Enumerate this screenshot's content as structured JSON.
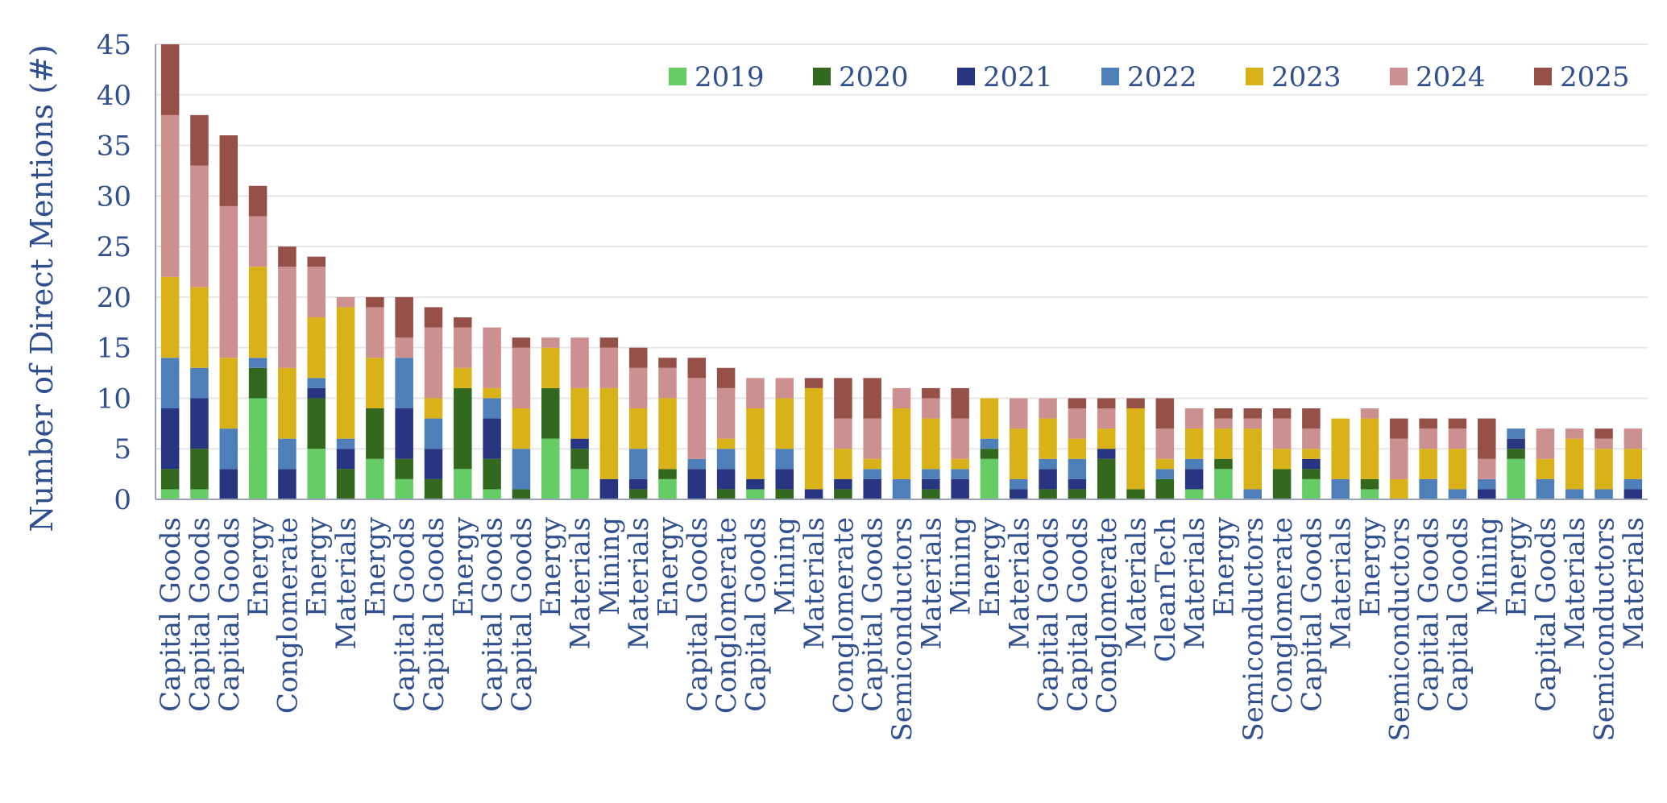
{
  "chart_data": {
    "type": "bar",
    "stacked": true,
    "title": "",
    "xlabel": "",
    "ylabel": "Number of Direct Mentions (#)",
    "ylim": [
      0,
      45
    ],
    "yticks": [
      0,
      5,
      10,
      15,
      20,
      25,
      30,
      35,
      40,
      45
    ],
    "grid": true,
    "legend_position": "top-right",
    "categories": [
      "Capital Goods",
      "Capital Goods",
      "Capital Goods",
      "Energy",
      "Conglomerate",
      "Energy",
      "Materials",
      "Energy",
      "Capital Goods",
      "Capital Goods",
      "Energy",
      "Capital Goods",
      "Capital Goods",
      "Energy",
      "Materials",
      "Mining",
      "Materials",
      "Energy",
      "Capital Goods",
      "Conglomerate",
      "Capital Goods",
      "Mining",
      "Materials",
      "Conglomerate",
      "Capital Goods",
      "Semiconductors",
      "Materials",
      "Mining",
      "Energy",
      "Materials",
      "Capital Goods",
      "Capital Goods",
      "Conglomerate",
      "Materials",
      "CleanTech",
      "Materials",
      "Energy",
      "Semiconductors",
      "Conglomerate",
      "Capital Goods",
      "Materials",
      "Energy",
      "Semiconductors",
      "Capital Goods",
      "Capital Goods",
      "Mining",
      "Energy",
      "Capital Goods",
      "Materials",
      "Semiconductors",
      "Materials"
    ],
    "series": [
      {
        "name": "2019",
        "color": "#66CC66",
        "values": [
          1,
          1,
          0,
          10,
          0,
          5,
          0,
          4,
          2,
          0,
          3,
          1,
          0,
          6,
          3,
          0,
          0,
          2,
          0,
          0,
          1,
          0,
          0,
          0,
          0,
          0,
          0,
          0,
          4,
          0,
          0,
          0,
          0,
          0,
          0,
          1,
          3,
          0,
          0,
          2,
          0,
          1,
          0,
          0,
          0,
          0,
          4,
          0,
          0,
          0,
          0
        ]
      },
      {
        "name": "2020",
        "color": "#33691E",
        "values": [
          2,
          4,
          0,
          3,
          0,
          5,
          3,
          5,
          2,
          2,
          8,
          3,
          1,
          5,
          2,
          0,
          1,
          1,
          0,
          1,
          0,
          1,
          0,
          1,
          0,
          0,
          1,
          0,
          1,
          0,
          1,
          1,
          4,
          1,
          2,
          0,
          1,
          0,
          3,
          1,
          0,
          1,
          0,
          0,
          0,
          0,
          1,
          0,
          0,
          0,
          0
        ]
      },
      {
        "name": "2021",
        "color": "#283580",
        "values": [
          6,
          5,
          3,
          0,
          3,
          1,
          2,
          0,
          5,
          3,
          0,
          4,
          0,
          0,
          1,
          2,
          1,
          0,
          3,
          2,
          1,
          2,
          1,
          1,
          2,
          0,
          1,
          2,
          0,
          1,
          2,
          1,
          1,
          0,
          0,
          2,
          0,
          0,
          0,
          1,
          0,
          0,
          0,
          0,
          0,
          1,
          1,
          0,
          0,
          0,
          1
        ]
      },
      {
        "name": "2022",
        "color": "#4F7FB8",
        "values": [
          5,
          3,
          4,
          1,
          3,
          1,
          1,
          0,
          5,
          3,
          0,
          2,
          4,
          0,
          0,
          0,
          3,
          0,
          1,
          2,
          0,
          2,
          0,
          0,
          1,
          2,
          1,
          1,
          1,
          1,
          1,
          2,
          0,
          0,
          1,
          1,
          0,
          1,
          0,
          0,
          2,
          0,
          0,
          2,
          1,
          1,
          1,
          2,
          1,
          1,
          1
        ]
      },
      {
        "name": "2023",
        "color": "#D9B21A",
        "values": [
          8,
          8,
          7,
          9,
          7,
          6,
          13,
          5,
          0,
          2,
          2,
          1,
          4,
          4,
          5,
          9,
          4,
          7,
          0,
          1,
          7,
          5,
          10,
          3,
          1,
          7,
          5,
          1,
          4,
          5,
          4,
          2,
          2,
          8,
          1,
          3,
          3,
          6,
          2,
          1,
          6,
          6,
          2,
          3,
          4,
          0,
          0,
          2,
          5,
          4,
          3
        ]
      },
      {
        "name": "2024",
        "color": "#CC9090",
        "values": [
          16,
          12,
          15,
          5,
          10,
          5,
          1,
          5,
          2,
          7,
          4,
          6,
          6,
          1,
          5,
          4,
          4,
          3,
          8,
          5,
          3,
          2,
          0,
          3,
          4,
          2,
          2,
          4,
          0,
          3,
          2,
          3,
          2,
          0,
          3,
          2,
          1,
          1,
          3,
          2,
          0,
          1,
          4,
          2,
          2,
          2,
          0,
          3,
          1,
          1,
          2
        ]
      },
      {
        "name": "2025",
        "color": "#955048",
        "values": [
          7,
          5,
          7,
          3,
          2,
          1,
          0,
          1,
          4,
          2,
          1,
          0,
          1,
          0,
          0,
          1,
          2,
          1,
          2,
          2,
          0,
          0,
          1,
          4,
          4,
          0,
          1,
          3,
          0,
          0,
          0,
          1,
          1,
          1,
          3,
          0,
          1,
          1,
          1,
          2,
          0,
          0,
          2,
          1,
          1,
          4,
          0,
          0,
          0,
          1,
          0
        ]
      }
    ]
  }
}
